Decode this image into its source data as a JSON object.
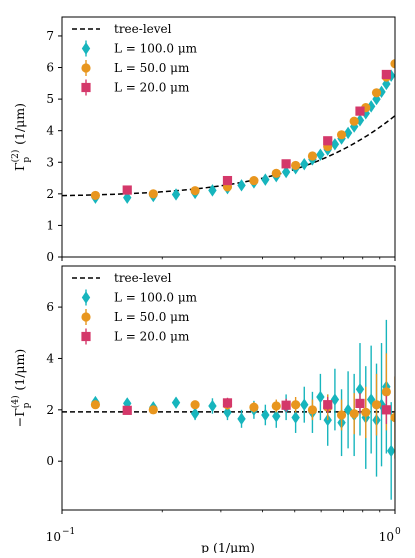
{
  "figure": {
    "x_axis_label": "p (1/μm)",
    "x_tick_labels": [
      "10",
      "−1",
      "10",
      "0"
    ]
  },
  "colors": {
    "tree_level": "#000000",
    "L100": "#17b5bd",
    "L50": "#e8961e",
    "L20": "#d4386a"
  },
  "chart_data": [
    {
      "type": "scatter",
      "panel": "top",
      "ylabel": "Γ_p^(2) (1/μm)",
      "y_label_parts": {
        "base": "Γ",
        "sub": "p",
        "sup": "(2)",
        "unit": " (1/μm)"
      },
      "xscale": "log",
      "xlim": [
        0.1,
        1.0
      ],
      "ylim": [
        0,
        7.6
      ],
      "y_ticks": [
        0,
        1,
        2,
        3,
        4,
        5,
        6,
        7
      ],
      "legend_placement": "upper left",
      "legend": [
        "tree-level",
        "L = 100.0 μm",
        "L = 50.0 μm",
        "L = 20.0 μm"
      ],
      "series": [
        {
          "name": "tree-level",
          "kind": "dashed-line",
          "color_key": "tree_level",
          "m": 1.9,
          "c": 4.05
        },
        {
          "name": "L = 100.0 μm",
          "marker": "diamond",
          "color_key": "L100",
          "x": [
            0.126,
            0.157,
            0.188,
            0.22,
            0.251,
            0.283,
            0.314,
            0.346,
            0.377,
            0.408,
            0.44,
            0.471,
            0.503,
            0.534,
            0.565,
            0.597,
            0.628,
            0.66,
            0.691,
            0.723,
            0.754,
            0.785,
            0.817,
            0.848,
            0.88,
            0.911,
            0.942,
            0.974
          ],
          "y": [
            1.88,
            1.88,
            1.93,
            1.98,
            2.03,
            2.11,
            2.18,
            2.27,
            2.36,
            2.45,
            2.56,
            2.69,
            2.81,
            2.94,
            3.09,
            3.24,
            3.4,
            3.57,
            3.75,
            3.93,
            4.13,
            4.33,
            4.55,
            4.77,
            5.0,
            5.23,
            5.48,
            5.74
          ]
        },
        {
          "name": "L = 50.0 μm",
          "marker": "circle",
          "color_key": "L50",
          "x": [
            0.126,
            0.188,
            0.251,
            0.314,
            0.377,
            0.44,
            0.503,
            0.565,
            0.628,
            0.691,
            0.754,
            0.817,
            0.88,
            0.942,
            1.0
          ],
          "y": [
            1.95,
            2.0,
            2.1,
            2.22,
            2.42,
            2.65,
            2.9,
            3.2,
            3.5,
            3.87,
            4.3,
            4.73,
            5.2,
            5.7,
            6.12
          ]
        },
        {
          "name": "L = 20.0 μm",
          "marker": "square",
          "color_key": "L20",
          "x": [
            0.157,
            0.314,
            0.471,
            0.628,
            0.785,
            0.942
          ],
          "y": [
            2.12,
            2.42,
            2.95,
            3.68,
            4.62,
            5.78
          ]
        }
      ]
    },
    {
      "type": "scatter",
      "panel": "bottom",
      "ylabel": "−Γ_p^(4) (1/μm)",
      "y_label_parts": {
        "base": "−Γ",
        "sub": "p",
        "sup": "(4)",
        "unit": " (1/μm)"
      },
      "xscale": "log",
      "xlim": [
        0.1,
        1.0
      ],
      "ylim": [
        -1.9,
        7.6
      ],
      "y_ticks": [
        0,
        2,
        4,
        6
      ],
      "legend_placement": "upper left",
      "legend": [
        "tree-level",
        "L = 100.0 μm",
        "L = 50.0 μm",
        "L = 20.0 μm"
      ],
      "series": [
        {
          "name": "tree-level",
          "kind": "dashed-line",
          "color_key": "tree_level",
          "value": 1.92
        },
        {
          "name": "L = 100.0 μm",
          "marker": "diamond",
          "color_key": "L100",
          "x": [
            0.126,
            0.157,
            0.188,
            0.22,
            0.251,
            0.283,
            0.314,
            0.346,
            0.377,
            0.408,
            0.44,
            0.471,
            0.503,
            0.534,
            0.565,
            0.597,
            0.628,
            0.66,
            0.691,
            0.723,
            0.754,
            0.785,
            0.817,
            0.848,
            0.88,
            0.911,
            0.942,
            0.974
          ],
          "y": [
            2.3,
            2.25,
            2.1,
            2.28,
            1.85,
            2.15,
            1.9,
            1.65,
            2.0,
            1.8,
            1.75,
            2.1,
            1.7,
            2.2,
            1.9,
            2.5,
            1.6,
            2.4,
            1.5,
            2.0,
            1.8,
            2.8,
            1.7,
            2.4,
            1.6,
            2.2,
            2.9,
            0.4
          ],
          "err": [
            0.2,
            0.2,
            0.2,
            0.2,
            0.25,
            0.3,
            0.3,
            0.35,
            0.35,
            0.4,
            0.45,
            0.5,
            0.6,
            0.7,
            0.8,
            0.9,
            1.0,
            1.2,
            1.3,
            1.5,
            1.6,
            1.8,
            2.0,
            2.1,
            2.2,
            2.4,
            2.6,
            1.9
          ]
        },
        {
          "name": "L = 50.0 μm",
          "marker": "circle",
          "color_key": "L50",
          "x": [
            0.126,
            0.188,
            0.251,
            0.314,
            0.377,
            0.44,
            0.503,
            0.565,
            0.628,
            0.691,
            0.754,
            0.817,
            0.88,
            0.942,
            1.0
          ],
          "y": [
            2.2,
            2.0,
            2.2,
            2.2,
            2.1,
            2.15,
            2.2,
            2.0,
            2.1,
            1.8,
            1.85,
            1.9,
            2.2,
            2.7,
            1.7
          ],
          "err": [
            0.15,
            0.15,
            0.15,
            0.2,
            0.2,
            0.25,
            0.3,
            0.4,
            0.5,
            0.6,
            0.8,
            1.0,
            1.2,
            1.5,
            1.6
          ]
        },
        {
          "name": "L = 20.0 μm",
          "marker": "square",
          "color_key": "L20",
          "x": [
            0.157,
            0.314,
            0.471,
            0.628,
            0.785,
            0.942
          ],
          "y": [
            1.98,
            2.27,
            2.18,
            2.2,
            2.25,
            2.0
          ],
          "err": [
            0.15,
            0.2,
            0.25,
            0.3,
            0.4,
            0.55
          ]
        }
      ]
    }
  ]
}
